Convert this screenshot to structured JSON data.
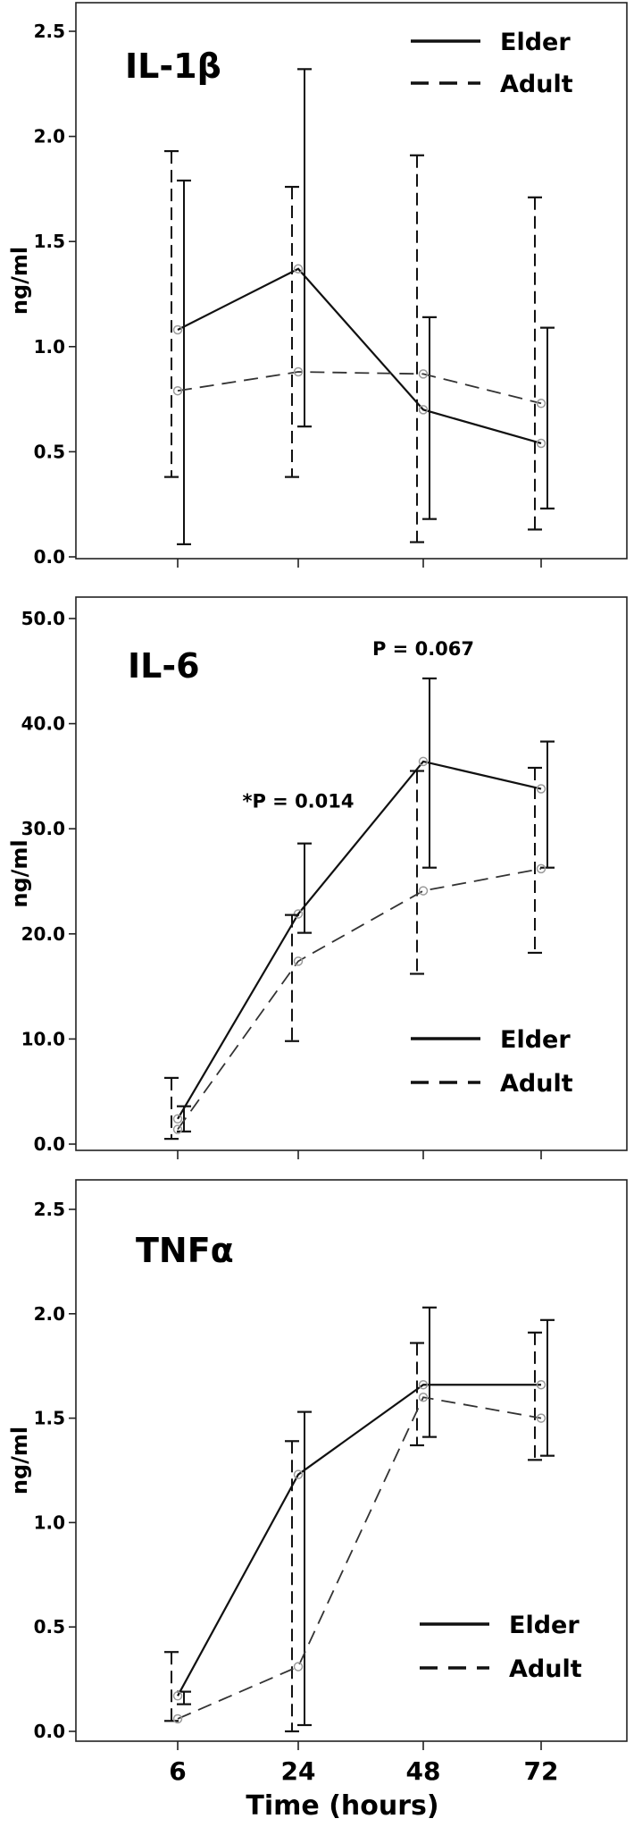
{
  "chart_data": [
    {
      "type": "line",
      "title": "IL-1β",
      "ylabel": "ng/ml",
      "x": [
        6,
        24,
        48,
        72
      ],
      "ylim": [
        0,
        2.5
      ],
      "yticks": [
        "0.0",
        "0.5",
        "1.0",
        "1.5",
        "2.0",
        "2.5"
      ],
      "legend_position": "top-right",
      "series": [
        {
          "name": "Elder",
          "style": "solid",
          "values": [
            1.08,
            1.37,
            0.7,
            0.54
          ],
          "err_low": [
            0.06,
            0.62,
            0.18,
            0.23
          ],
          "err_high": [
            1.79,
            2.32,
            1.14,
            1.09
          ]
        },
        {
          "name": "Adult",
          "style": "dashed",
          "values": [
            0.79,
            0.88,
            0.87,
            0.73
          ],
          "err_low": [
            0.38,
            0.38,
            0.07,
            0.13
          ],
          "err_high": [
            1.93,
            1.76,
            1.91,
            1.71
          ]
        }
      ],
      "annotations": []
    },
    {
      "type": "line",
      "title": "IL-6",
      "ylabel": "ng/ml",
      "x": [
        6,
        24,
        48,
        72
      ],
      "ylim": [
        0,
        50
      ],
      "yticks": [
        "0.0",
        "10.0",
        "20.0",
        "30.0",
        "40.0",
        "50.0"
      ],
      "legend_position": "bottom-right",
      "series": [
        {
          "name": "Elder",
          "style": "solid",
          "values": [
            2.4,
            21.9,
            36.4,
            33.8
          ],
          "err_low": [
            1.2,
            20.1,
            26.3,
            26.3
          ],
          "err_high": [
            3.6,
            28.6,
            44.3,
            38.3
          ]
        },
        {
          "name": "Adult",
          "style": "dashed",
          "values": [
            1.4,
            17.4,
            24.1,
            26.2
          ],
          "err_low": [
            0.5,
            9.8,
            16.2,
            18.2
          ],
          "err_high": [
            6.3,
            21.8,
            35.5,
            35.8
          ]
        }
      ],
      "annotations": [
        {
          "text": "*P = 0.014",
          "x": 24,
          "y": 32
        },
        {
          "text": "P = 0.067",
          "x": 48,
          "y": 46.5
        }
      ]
    },
    {
      "type": "line",
      "title": "TNFα",
      "ylabel": "ng/ml",
      "xlabel": "Time (hours)",
      "x": [
        6,
        24,
        48,
        72
      ],
      "xticks": [
        "6",
        "24",
        "48",
        "72"
      ],
      "ylim": [
        0,
        2.5
      ],
      "yticks": [
        "0.0",
        "0.5",
        "1.0",
        "1.5",
        "2.0",
        "2.5"
      ],
      "legend_position": "bottom-right",
      "series": [
        {
          "name": "Elder",
          "style": "solid",
          "values": [
            0.17,
            1.23,
            1.66,
            1.66
          ],
          "err_low": [
            0.13,
            0.03,
            1.41,
            1.32
          ],
          "err_high": [
            0.19,
            1.53,
            2.03,
            1.97
          ]
        },
        {
          "name": "Adult",
          "style": "dashed",
          "values": [
            0.06,
            0.31,
            1.6,
            1.5
          ],
          "err_low": [
            0.05,
            0.0,
            1.37,
            1.3
          ],
          "err_high": [
            0.38,
            1.39,
            1.86,
            1.91
          ]
        }
      ],
      "annotations": []
    }
  ]
}
